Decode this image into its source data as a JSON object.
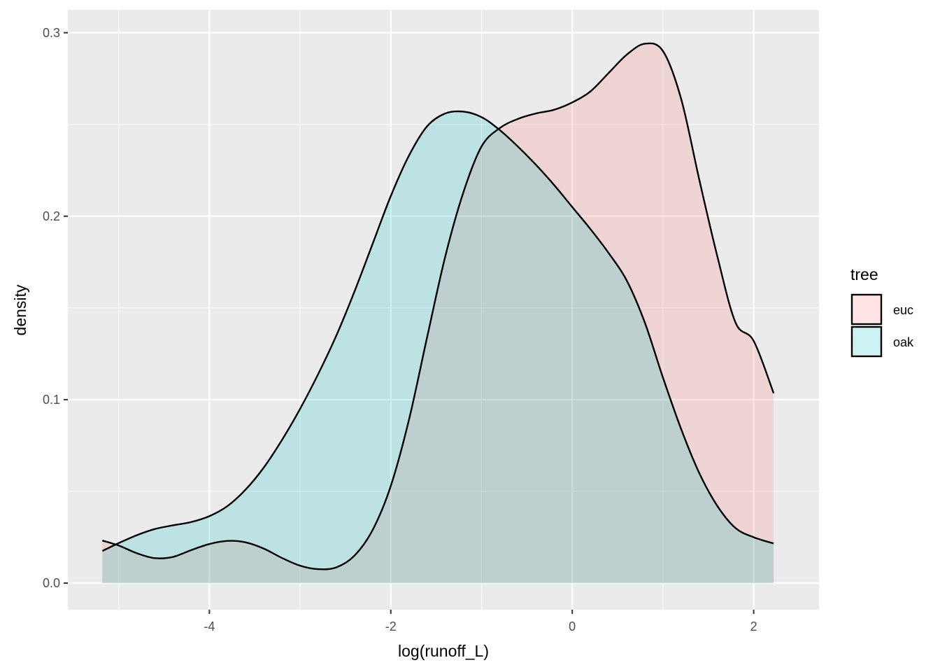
{
  "chart_data": {
    "type": "area",
    "subtype": "density",
    "title": "",
    "xlabel": "log(runoff_L)",
    "ylabel": "density",
    "xlim": [
      -5.56,
      2.72
    ],
    "ylim": [
      -0.0145,
      0.3125
    ],
    "x_ticks": [
      -4,
      -2,
      0,
      2
    ],
    "y_ticks": [
      0.0,
      0.1,
      0.2,
      0.3
    ],
    "x_tick_labels": [
      "-4",
      "-2",
      "0",
      "2"
    ],
    "y_tick_labels": [
      "0.0",
      "0.1",
      "0.2",
      "0.3"
    ],
    "grid": true,
    "panel_background": "#ebebeb",
    "grid_color": "#ffffff",
    "legend": {
      "title": "tree",
      "placement": "right"
    },
    "series": [
      {
        "name": "euc",
        "fill": "#f8766d",
        "fill_alpha": 0.2,
        "line_color": "#000000",
        "x": [
          -5.18,
          -5.0,
          -4.8,
          -4.6,
          -4.4,
          -4.2,
          -4.0,
          -3.8,
          -3.6,
          -3.4,
          -3.2,
          -3.0,
          -2.8,
          -2.6,
          -2.4,
          -2.2,
          -2.0,
          -1.8,
          -1.6,
          -1.4,
          -1.2,
          -1.0,
          -0.8,
          -0.6,
          -0.4,
          -0.2,
          0.0,
          0.2,
          0.4,
          0.6,
          0.8,
          1.0,
          1.2,
          1.4,
          1.6,
          1.8,
          2.0,
          2.22
        ],
        "y": [
          0.0232,
          0.0205,
          0.0163,
          0.0136,
          0.0143,
          0.018,
          0.0213,
          0.023,
          0.0222,
          0.0188,
          0.0137,
          0.0095,
          0.0076,
          0.0086,
          0.015,
          0.029,
          0.053,
          0.089,
          0.134,
          0.178,
          0.213,
          0.238,
          0.248,
          0.253,
          0.256,
          0.258,
          0.262,
          0.268,
          0.278,
          0.288,
          0.294,
          0.29,
          0.264,
          0.22,
          0.178,
          0.142,
          0.132,
          0.1035
        ]
      },
      {
        "name": "oak",
        "fill": "#00bfc4",
        "fill_alpha": 0.2,
        "line_color": "#000000",
        "x": [
          -5.18,
          -5.0,
          -4.8,
          -4.6,
          -4.4,
          -4.2,
          -4.0,
          -3.8,
          -3.6,
          -3.4,
          -3.2,
          -3.0,
          -2.8,
          -2.6,
          -2.4,
          -2.2,
          -2.0,
          -1.8,
          -1.6,
          -1.4,
          -1.2,
          -1.0,
          -0.8,
          -0.6,
          -0.4,
          -0.2,
          0.0,
          0.2,
          0.4,
          0.6,
          0.8,
          1.0,
          1.2,
          1.4,
          1.6,
          1.8,
          2.0,
          2.22
        ],
        "y": [
          0.0175,
          0.0218,
          0.0261,
          0.0295,
          0.0315,
          0.0333,
          0.0365,
          0.042,
          0.051,
          0.063,
          0.078,
          0.095,
          0.114,
          0.135,
          0.159,
          0.185,
          0.211,
          0.233,
          0.249,
          0.256,
          0.257,
          0.254,
          0.247,
          0.238,
          0.228,
          0.217,
          0.205,
          0.193,
          0.18,
          0.165,
          0.142,
          0.112,
          0.084,
          0.06,
          0.042,
          0.03,
          0.025,
          0.0216
        ]
      }
    ]
  }
}
